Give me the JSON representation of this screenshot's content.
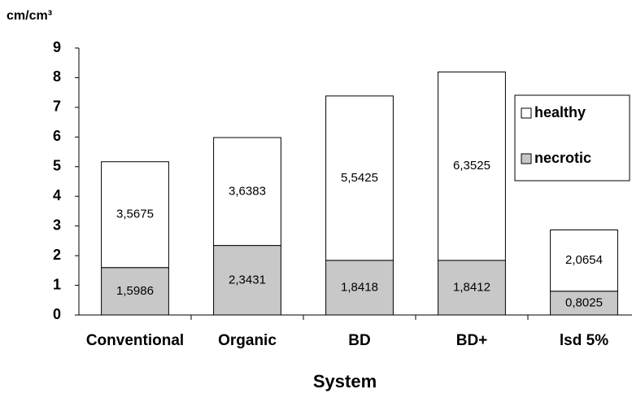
{
  "chart_data": {
    "type": "stacked-bar",
    "y_axis_label": "cm/cm³",
    "x_axis_label": "System",
    "categories": [
      "Conventional",
      "Organic",
      "BD",
      "BD+",
      "lsd 5%"
    ],
    "series": [
      {
        "name": "necrotic",
        "color": "#c8c8c8",
        "values": [
          1.5986,
          2.3431,
          1.8418,
          1.8412,
          0.8025
        ],
        "value_labels": [
          "1,5986",
          "2,3431",
          "1,8418",
          "1,8412",
          "0,8025"
        ]
      },
      {
        "name": "healthy",
        "color": "#ffffff",
        "values": [
          3.5675,
          3.6383,
          5.5425,
          6.3525,
          2.0654
        ],
        "value_labels": [
          "3,5675",
          "3,6383",
          "5,5425",
          "6,3525",
          "2,0654"
        ]
      }
    ],
    "ylim": [
      0,
      9
    ],
    "yticks": [
      0,
      1,
      2,
      3,
      4,
      5,
      6,
      7,
      8,
      9
    ],
    "grid": false,
    "legend": "upper right"
  }
}
